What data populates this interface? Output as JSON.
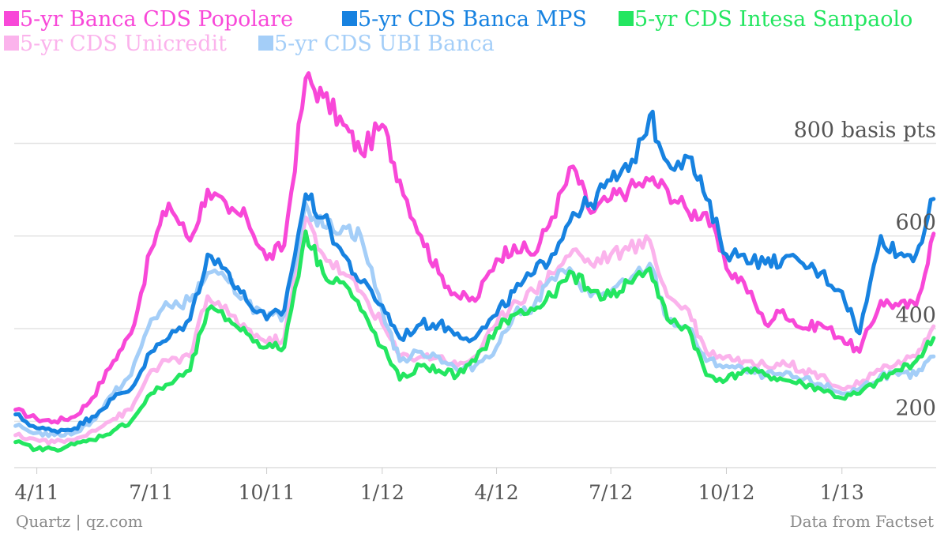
{
  "chart_data": {
    "type": "line",
    "title": "",
    "xlabel": "",
    "ylabel": "",
    "ylim": [
      100,
      990
    ],
    "x_tick_labels": [
      "4/11",
      "7/11",
      "10/11",
      "1/12",
      "4/12",
      "7/12",
      "10/12",
      "1/13"
    ],
    "y_ticks": [
      {
        "value": 200,
        "label": "200"
      },
      {
        "value": 400,
        "label": "400"
      },
      {
        "value": 600,
        "label": "600"
      },
      {
        "value": 800,
        "label": "800 basis pts"
      }
    ],
    "grid": true,
    "legend_position": "top-left",
    "x_dates": [
      "2011-03-15",
      "2011-04-01",
      "2011-04-15",
      "2011-05-01",
      "2011-05-15",
      "2011-06-01",
      "2011-06-15",
      "2011-07-01",
      "2011-07-15",
      "2011-08-01",
      "2011-08-15",
      "2011-09-01",
      "2011-09-15",
      "2011-10-01",
      "2011-10-15",
      "2011-11-01",
      "2011-11-15",
      "2011-12-01",
      "2011-12-15",
      "2012-01-01",
      "2012-01-15",
      "2012-02-01",
      "2012-02-15",
      "2012-03-01",
      "2012-03-15",
      "2012-04-01",
      "2012-04-15",
      "2012-05-01",
      "2012-05-15",
      "2012-06-01",
      "2012-06-15",
      "2012-07-01",
      "2012-07-15",
      "2012-08-01",
      "2012-08-15",
      "2012-09-01",
      "2012-09-15",
      "2012-10-01",
      "2012-10-15",
      "2012-11-01",
      "2012-11-15",
      "2012-12-01",
      "2012-12-15",
      "2013-01-01",
      "2013-01-15",
      "2013-02-01",
      "2013-02-15",
      "2013-03-01",
      "2013-03-15"
    ],
    "series": [
      {
        "name": "5-yr Banca CDS Popolare",
        "color": "#f848d8",
        "values": [
          225,
          205,
          200,
          210,
          250,
          330,
          390,
          570,
          670,
          590,
          700,
          650,
          640,
          550,
          580,
          940,
          900,
          840,
          780,
          840,
          720,
          600,
          520,
          470,
          460,
          550,
          580,
          560,
          640,
          750,
          650,
          680,
          700,
          720,
          700,
          650,
          650,
          530,
          500,
          410,
          440,
          400,
          410,
          380,
          350,
          460,
          450,
          450,
          605
        ]
      },
      {
        "name": "5-yr CDS Banca MPS",
        "color": "#1782e0",
        "values": [
          215,
          185,
          180,
          185,
          210,
          250,
          270,
          350,
          380,
          420,
          560,
          520,
          460,
          420,
          440,
          690,
          640,
          560,
          500,
          450,
          380,
          410,
          410,
          390,
          380,
          430,
          480,
          520,
          560,
          650,
          670,
          720,
          740,
          860,
          760,
          770,
          680,
          560,
          560,
          540,
          550,
          540,
          520,
          480,
          390,
          600,
          560,
          560,
          680
        ]
      },
      {
        "name": "5-yr CDS Intesa Sanpaolo",
        "color": "#23e660",
        "values": [
          155,
          140,
          140,
          150,
          160,
          180,
          200,
          260,
          280,
          310,
          440,
          420,
          390,
          360,
          360,
          610,
          520,
          500,
          440,
          360,
          290,
          320,
          310,
          300,
          330,
          400,
          430,
          440,
          470,
          520,
          480,
          470,
          500,
          530,
          420,
          400,
          300,
          290,
          310,
          300,
          290,
          280,
          270,
          250,
          260,
          290,
          310,
          330,
          380
        ]
      },
      {
        "name": "5-yr CDS Unicredit",
        "color": "#fbb3ec",
        "values": [
          170,
          160,
          155,
          160,
          180,
          205,
          225,
          310,
          330,
          340,
          470,
          430,
          400,
          370,
          380,
          640,
          560,
          520,
          480,
          410,
          340,
          340,
          340,
          320,
          340,
          410,
          460,
          480,
          520,
          570,
          540,
          560,
          570,
          590,
          470,
          440,
          350,
          340,
          330,
          320,
          330,
          310,
          300,
          270,
          280,
          310,
          330,
          340,
          405
        ]
      },
      {
        "name": "5-yr CDS UBI Banca",
        "color": "#a4cef8",
        "values": [
          190,
          175,
          170,
          175,
          200,
          260,
          300,
          420,
          450,
          460,
          520,
          500,
          460,
          420,
          430,
          670,
          620,
          620,
          600,
          440,
          330,
          350,
          340,
          310,
          320,
          360,
          430,
          450,
          510,
          520,
          470,
          480,
          500,
          540,
          420,
          400,
          330,
          320,
          310,
          300,
          300,
          290,
          280,
          260,
          270,
          300,
          300,
          300,
          340
        ]
      }
    ]
  },
  "footer": {
    "source_left": "Quartz | qz.com",
    "source_right": "Data from Factset"
  },
  "colors": {
    "grid": "#e4e4e4",
    "axis": "#cccccc",
    "tick_text": "#555555",
    "footer_text": "#8a8a8a"
  }
}
